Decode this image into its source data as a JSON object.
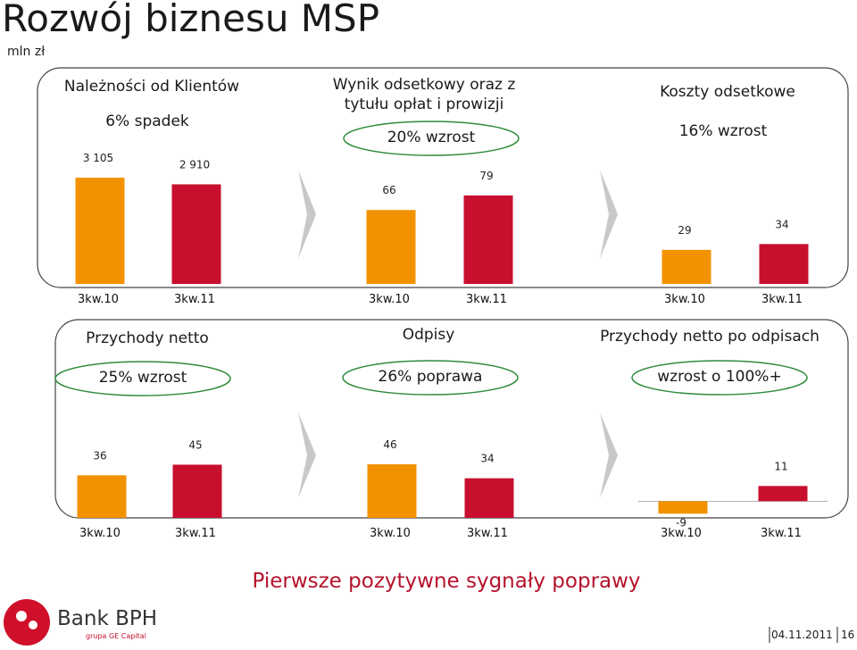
{
  "page": {
    "title": "Rozwój biznesu MSP",
    "unit": "mln zł",
    "footer": "Pierwsze pozytywne sygnały poprawy",
    "brand": "Bank BPH",
    "brand_sub": "grupa GE Capital",
    "date": "04.11.2011",
    "page_number": "16"
  },
  "chart_data": [
    {
      "type": "bar",
      "title": "Należności od Klientów",
      "annotation": "6% spadek",
      "highlight": false,
      "categories": [
        "3kw.10",
        "3kw.11"
      ],
      "values": [
        3105,
        2910
      ],
      "value_labels": [
        "3 105",
        "2 910"
      ],
      "colors": [
        "#f39200",
        "#c8102e"
      ],
      "ylim": [
        0,
        3600
      ]
    },
    {
      "type": "bar",
      "title": "Wynik odsetkowy oraz z tytułu opłat i prowizji",
      "annotation": "20% wzrost",
      "highlight": true,
      "categories": [
        "3kw.10",
        "3kw.11"
      ],
      "values": [
        66,
        79
      ],
      "colors": [
        "#f39200",
        "#c8102e"
      ],
      "ylim": [
        0,
        110
      ]
    },
    {
      "type": "bar",
      "title": "Koszty odsetkowe",
      "annotation": "16% wzrost",
      "highlight": false,
      "categories": [
        "3kw.10",
        "3kw.11"
      ],
      "values": [
        29,
        34
      ],
      "colors": [
        "#f39200",
        "#c8102e"
      ],
      "ylim": [
        0,
        105
      ]
    },
    {
      "type": "bar",
      "title": "Przychody netto",
      "annotation": "25% wzrost",
      "highlight": true,
      "categories": [
        "3kw.10",
        "3kw.11"
      ],
      "values": [
        36,
        45
      ],
      "colors": [
        "#f39200",
        "#c8102e"
      ],
      "ylim": [
        0,
        68
      ]
    },
    {
      "type": "bar",
      "title": "Odpisy",
      "annotation": "26% poprawa",
      "highlight": true,
      "categories": [
        "3kw.10",
        "3kw.11"
      ],
      "values": [
        46,
        34
      ],
      "colors": [
        "#f39200",
        "#c8102e"
      ],
      "ylim": [
        0,
        69
      ]
    },
    {
      "type": "bar",
      "title": "Przychody netto po odpisach",
      "annotation": "wzrost o 100%+",
      "highlight": true,
      "categories": [
        "3kw.10",
        "3kw.11"
      ],
      "values": [
        -9,
        11
      ],
      "colors": [
        "#f39200",
        "#c8102e"
      ],
      "ylim": [
        -12,
        46
      ]
    }
  ]
}
